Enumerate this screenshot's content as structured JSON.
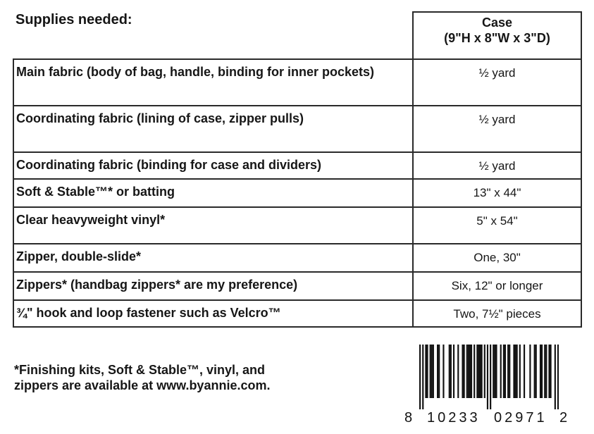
{
  "table": {
    "header": {
      "supplies_label": "Supplies needed:",
      "case_title": "Case",
      "case_dims": "(9\"H x 8\"W x 3\"D)"
    },
    "rows": [
      {
        "item": "Main fabric (body of bag, handle, binding for inner pockets)",
        "value": "½ yard"
      },
      {
        "item": "Coordinating fabric (lining of case, zipper pulls)",
        "value": "½ yard"
      },
      {
        "item": "Coordinating fabric (binding for case and dividers)",
        "value": "½ yard"
      },
      {
        "item": "Soft & Stable™* or batting",
        "value": "13\" x 44\""
      },
      {
        "item": "Clear heavyweight vinyl*",
        "value": "5\" x 54\""
      },
      {
        "item": "Zipper, double-slide*",
        "value": "One, 30\""
      },
      {
        "item": "Zippers* (handbag zippers* are my preference)",
        "value": "Six, 12\" or longer"
      },
      {
        "item": "¾\" hook and loop fastener such as Velcro™",
        "value": "Two, 7½\" pieces"
      }
    ]
  },
  "footnote": {
    "line1": "*Finishing kits, Soft & Stable™, vinyl, and",
    "line2": "zippers are available at www.byannie.com."
  },
  "barcode": {
    "upc": "810233029712",
    "display": {
      "left_digit": "8",
      "group1": "10233",
      "group2": "02971",
      "right_digit": "2"
    }
  },
  "colors": {
    "text": "#161616",
    "border": "#2a2a2a",
    "background": "#ffffff",
    "barcode": "#121212"
  }
}
